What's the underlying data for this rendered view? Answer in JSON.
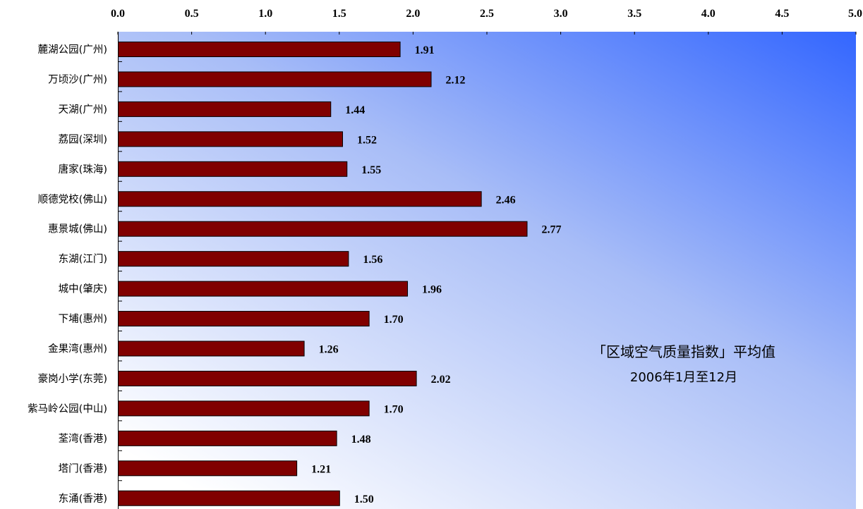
{
  "chart_data": {
    "type": "bar",
    "orientation": "horizontal",
    "title": "",
    "xlabel": "",
    "ylabel": "",
    "xlim": [
      0,
      5
    ],
    "x_ticks": [
      "0.0",
      "0.5",
      "1.0",
      "1.5",
      "2.0",
      "2.5",
      "3.0",
      "3.5",
      "4.0",
      "4.5",
      "5.0"
    ],
    "x_axis_position": "top",
    "grid": false,
    "categories": [
      "麓湖公园(广州)",
      "万顷沙(广州)",
      "天湖(广州)",
      "荔园(深圳)",
      "唐家(珠海)",
      "顺德党校(佛山)",
      "惠景城(佛山)",
      "东湖(江门)",
      "城中(肇庆)",
      "下埔(惠州)",
      "金果湾(惠州)",
      "豪岗小学(东莞)",
      "紫马岭公园(中山)",
      "荃湾(香港)",
      "塔门(香港)",
      "东涌(香港)"
    ],
    "values": [
      1.91,
      2.12,
      1.44,
      1.52,
      1.55,
      2.46,
      2.77,
      1.56,
      1.96,
      1.7,
      1.26,
      2.02,
      1.7,
      1.48,
      1.21,
      1.5
    ],
    "value_labels": [
      "1.91",
      "2.12",
      "1.44",
      "1.52",
      "1.55",
      "2.46",
      "2.77",
      "1.56",
      "1.96",
      "1.70",
      "1.26",
      "2.02",
      "1.70",
      "1.48",
      "1.21",
      "1.50"
    ],
    "annotation": [
      "「区域空气质量指数」平均值",
      "2006年1月至12月"
    ],
    "colors": {
      "bar": "#800000",
      "background_top": "#3366ff",
      "background_bottom": "#ffffff"
    }
  }
}
